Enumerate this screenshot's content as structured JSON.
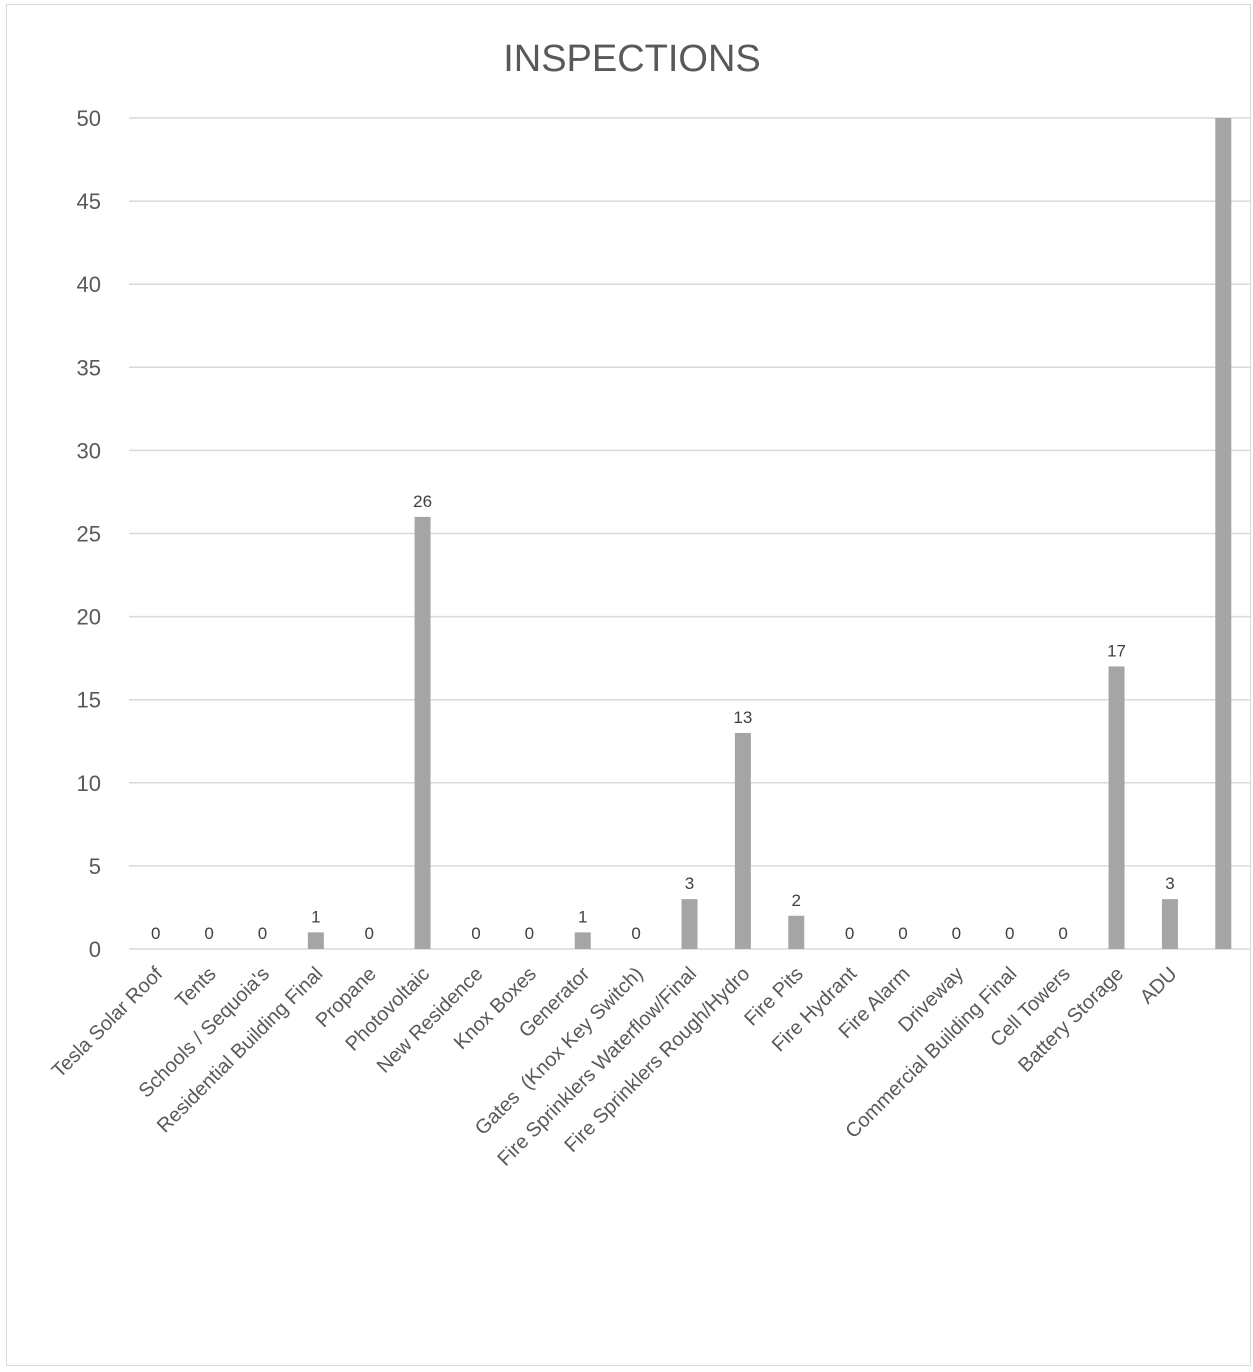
{
  "chart_data": {
    "type": "bar",
    "title": "INSPECTIONS",
    "xlabel": "",
    "ylabel": "",
    "ylim": [
      0,
      50
    ],
    "yticks": [
      0,
      5,
      10,
      15,
      20,
      25,
      30,
      35,
      40,
      45,
      50
    ],
    "grid": true,
    "legend": "none",
    "bar_color": "#a5a5a5",
    "categories": [
      "Tesla Solar Roof",
      "Tents",
      "Schools / Sequoia's",
      "Residential Building Final",
      "Propane",
      "Photovoltaic",
      "New Residence",
      "Knox Boxes",
      "Generator",
      "Gates  (Knox Key Switch)",
      "Fire Sprinklers Waterflow/Final",
      "Fire Sprinklers Rough/Hydro",
      "Fire Pits",
      "Fire Hydrant",
      "Fire Alarm",
      "Driveway",
      "Commercial Building Final",
      "Cell Towers",
      "Battery Storage",
      "ADU",
      ""
    ],
    "values": [
      0,
      0,
      0,
      1,
      0,
      26,
      0,
      0,
      1,
      0,
      3,
      13,
      2,
      0,
      0,
      0,
      0,
      0,
      17,
      3,
      50
    ],
    "data_labels": [
      "0",
      "0",
      "0",
      "1",
      "0",
      "26",
      "0",
      "0",
      "1",
      "0",
      "3",
      "13",
      "2",
      "0",
      "0",
      "0",
      "0",
      "0",
      "17",
      "3",
      ""
    ]
  }
}
